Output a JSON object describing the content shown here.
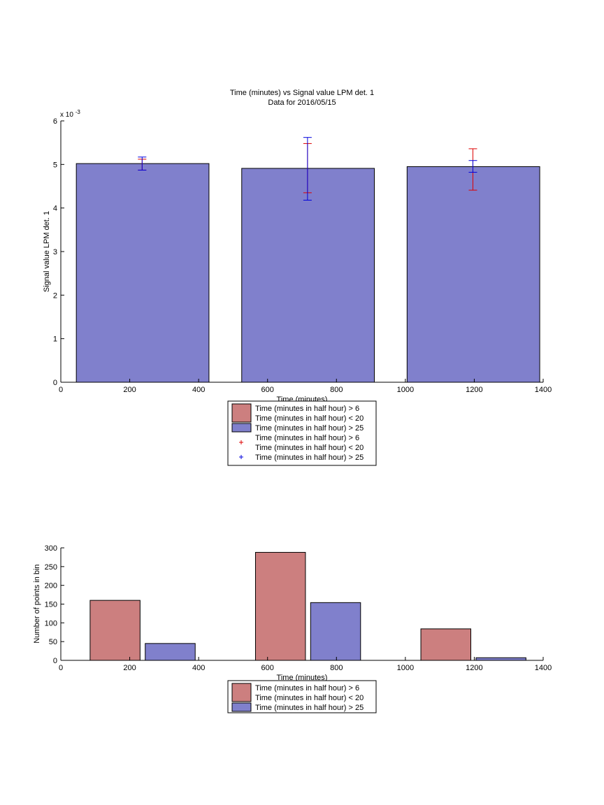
{
  "colors": {
    "red": "#cc7f7f",
    "blue": "#8080cc",
    "err_red": "#dd0000",
    "err_blue": "#0000dd"
  },
  "chart_data": [
    {
      "type": "bar",
      "title": "Time (minutes) vs Signal value LPM det. 1",
      "subtitle": "Data for 2016/05/15",
      "xlabel": "Time (minutes)",
      "ylabel": "Signal value LPM det. 1",
      "y_exponent_label": "x 10",
      "y_exponent_power": "-3",
      "xlim": [
        0,
        1400
      ],
      "ylim": [
        0,
        6
      ],
      "x_ticks": [
        "0",
        "200",
        "400",
        "600",
        "800",
        "1000",
        "1200",
        "1400"
      ],
      "y_ticks": [
        "0",
        "1",
        "2",
        "3",
        "4",
        "5",
        "6"
      ],
      "bars": [
        {
          "x0": 45,
          "x1": 430,
          "value": 5.02,
          "series": "blue"
        },
        {
          "x0": 525,
          "x1": 910,
          "value": 4.91,
          "series": "blue"
        },
        {
          "x0": 1005,
          "x1": 1390,
          "value": 4.95,
          "series": "blue"
        }
      ],
      "errorbars": [
        {
          "x": 236,
          "low": 4.87,
          "high": 5.12,
          "series": "red"
        },
        {
          "x": 236,
          "low": 4.87,
          "high": 5.17,
          "series": "blue"
        },
        {
          "x": 716,
          "low": 4.35,
          "high": 5.48,
          "series": "red"
        },
        {
          "x": 716,
          "low": 4.18,
          "high": 5.62,
          "series": "blue"
        },
        {
          "x": 1196,
          "low": 4.41,
          "high": 5.36,
          "series": "red"
        },
        {
          "x": 1196,
          "low": 4.82,
          "high": 5.09,
          "series": "blue"
        }
      ],
      "legend": [
        {
          "kind": "patch",
          "series": "red",
          "lines": [
            "Time (minutes in half hour) > 6",
            "Time (minutes in half hour) < 20"
          ]
        },
        {
          "kind": "patch",
          "series": "blue",
          "lines": [
            "Time (minutes in half hour) > 25"
          ]
        },
        {
          "kind": "marker",
          "series": "err_red",
          "lines": [
            "Time (minutes in half hour) > 6",
            "Time (minutes in half hour) < 20"
          ]
        },
        {
          "kind": "marker",
          "series": "err_blue",
          "lines": [
            "Time (minutes in half hour) > 25"
          ]
        }
      ],
      "legend_placement": "below"
    },
    {
      "type": "bar",
      "title": "",
      "xlabel": "Time (minutes)",
      "ylabel": "Number of points in bin",
      "xlim": [
        0,
        1400
      ],
      "ylim": [
        0,
        300
      ],
      "x_ticks": [
        "0",
        "200",
        "400",
        "600",
        "800",
        "1000",
        "1200",
        "1400"
      ],
      "y_ticks": [
        "0",
        "50",
        "100",
        "150",
        "200",
        "250",
        "300"
      ],
      "bars": [
        {
          "x0": 85,
          "x1": 230,
          "value": 160,
          "series": "red"
        },
        {
          "x0": 245,
          "x1": 390,
          "value": 45,
          "series": "blue"
        },
        {
          "x0": 565,
          "x1": 710,
          "value": 288,
          "series": "red"
        },
        {
          "x0": 725,
          "x1": 870,
          "value": 154,
          "series": "blue"
        },
        {
          "x0": 1045,
          "x1": 1190,
          "value": 84,
          "series": "red"
        },
        {
          "x0": 1205,
          "x1": 1350,
          "value": 7,
          "series": "blue"
        }
      ],
      "legend": [
        {
          "kind": "patch",
          "series": "red",
          "lines": [
            "Time (minutes in half hour) > 6",
            "Time (minutes in half hour) < 20"
          ]
        },
        {
          "kind": "patch",
          "series": "blue",
          "lines": [
            "Time (minutes in half hour) > 25"
          ]
        }
      ],
      "legend_placement": "below"
    }
  ]
}
